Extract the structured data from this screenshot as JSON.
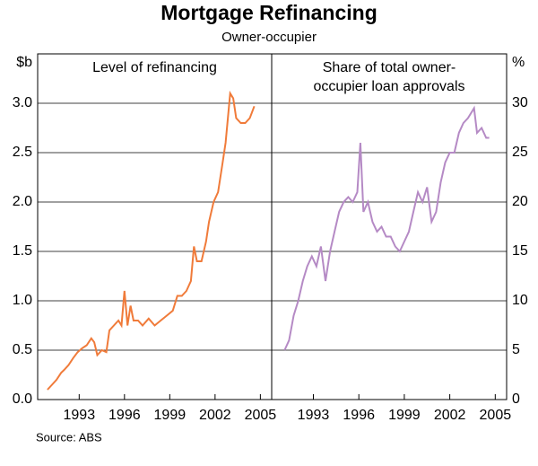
{
  "title": "Mortgage Refinancing",
  "subtitle": "Owner-occupier",
  "source": "Source: ABS",
  "chart_data": [
    {
      "type": "line",
      "title": [
        "Level of refinancing"
      ],
      "y_label": "$b",
      "yaxis_side": "left",
      "color": "#f07b3a",
      "xlim": [
        1990.25,
        2005.75
      ],
      "xticks": [
        1993,
        1996,
        1999,
        2002,
        2005
      ],
      "ylim": [
        0,
        3.5
      ],
      "yticks": [
        {
          "value": 0,
          "label": "0.0"
        },
        0.5,
        {
          "value": 1,
          "label": "1.0"
        },
        1.5,
        {
          "value": 2,
          "label": "2.0"
        },
        2.5,
        {
          "value": 3,
          "label": "3.0"
        }
      ],
      "grid": true,
      "x": [
        1990.9,
        1991.2,
        1991.5,
        1991.8,
        1992.0,
        1992.3,
        1992.6,
        1992.9,
        1993.2,
        1993.5,
        1993.8,
        1994.0,
        1994.2,
        1994.5,
        1994.8,
        1995.0,
        1995.3,
        1995.6,
        1995.8,
        1996.0,
        1996.2,
        1996.4,
        1996.6,
        1996.9,
        1997.2,
        1997.6,
        1998.0,
        1998.4,
        1998.8,
        1999.2,
        1999.5,
        1999.8,
        2000.1,
        2000.4,
        2000.6,
        2000.8,
        2001.1,
        2001.4,
        2001.6,
        2001.9,
        2002.2,
        2002.5,
        2002.7,
        2003.0,
        2003.2,
        2003.4,
        2003.7,
        2004.0,
        2004.3,
        2004.6
      ],
      "values": [
        0.1,
        0.15,
        0.2,
        0.27,
        0.3,
        0.35,
        0.42,
        0.48,
        0.52,
        0.55,
        0.62,
        0.58,
        0.45,
        0.5,
        0.48,
        0.7,
        0.75,
        0.8,
        0.75,
        1.1,
        0.75,
        0.95,
        0.8,
        0.8,
        0.75,
        0.82,
        0.75,
        0.8,
        0.85,
        0.9,
        1.05,
        1.05,
        1.1,
        1.2,
        1.55,
        1.4,
        1.4,
        1.6,
        1.8,
        2.0,
        2.1,
        2.4,
        2.6,
        3.1,
        3.05,
        2.85,
        2.8,
        2.8,
        2.85,
        2.97
      ]
    },
    {
      "type": "line",
      "title": [
        "Share of total owner-",
        "occupier loan approvals"
      ],
      "y_label": "%",
      "yaxis_side": "right",
      "color": "#b58ac5",
      "xlim": [
        1990.25,
        2005.75
      ],
      "xticks": [
        1993,
        1996,
        1999,
        2002,
        2005
      ],
      "ylim": [
        0,
        35
      ],
      "yticks": [
        0,
        5,
        10,
        15,
        20,
        25,
        30
      ],
      "grid": true,
      "x": [
        1991.1,
        1991.4,
        1991.7,
        1992.0,
        1992.3,
        1992.6,
        1992.9,
        1993.2,
        1993.5,
        1993.8,
        1994.1,
        1994.4,
        1994.7,
        1995.0,
        1995.3,
        1995.6,
        1995.9,
        1996.1,
        1996.3,
        1996.6,
        1996.9,
        1997.2,
        1997.5,
        1997.8,
        1998.1,
        1998.4,
        1998.7,
        1999.0,
        1999.3,
        1999.6,
        1999.9,
        2000.2,
        2000.5,
        2000.8,
        2001.1,
        2001.4,
        2001.7,
        2002.0,
        2002.3,
        2002.6,
        2002.9,
        2003.2,
        2003.6,
        2003.8,
        2004.1,
        2004.4,
        2004.6
      ],
      "values": [
        5,
        6,
        8.5,
        10,
        12,
        13.5,
        14.5,
        13.5,
        15.5,
        12,
        15,
        17,
        19,
        20,
        20.5,
        20,
        21,
        26,
        19,
        20,
        18,
        17,
        17.5,
        16.5,
        16.5,
        15.5,
        15,
        16,
        17,
        19,
        21,
        20,
        21.5,
        18,
        19,
        22,
        24,
        25,
        25,
        27,
        28,
        28.5,
        29.5,
        27,
        27.5,
        26.5,
        26.5
      ]
    }
  ]
}
